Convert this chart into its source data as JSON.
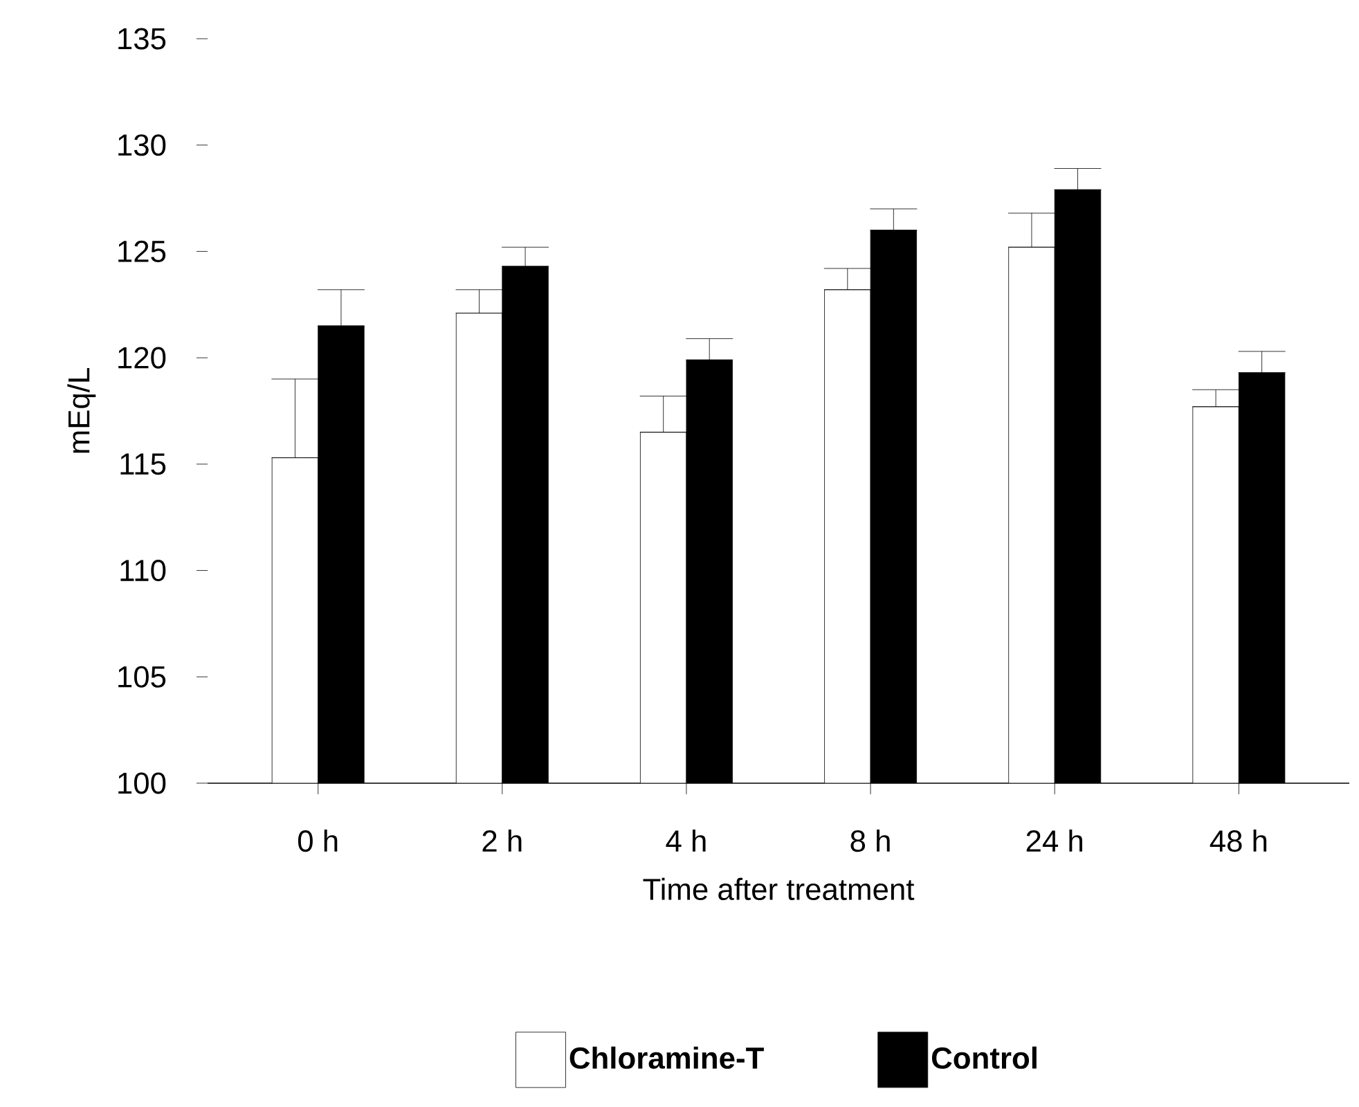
{
  "chart_data": {
    "type": "bar",
    "xlabel": "Time after treatment",
    "ylabel": "mEq/L",
    "categories": [
      "0 h",
      "2 h",
      "4 h",
      "8 h",
      "24 h",
      "48 h"
    ],
    "series": [
      {
        "name": "Chloramine-T",
        "color": "#ffffff",
        "values": [
          115.3,
          122.1,
          116.5,
          123.2,
          125.2,
          117.7
        ],
        "errors": [
          [
            115.3,
            119.0
          ],
          [
            122.1,
            123.2
          ],
          [
            116.5,
            118.2
          ],
          [
            123.2,
            124.2
          ],
          [
            125.2,
            126.8
          ],
          [
            117.7,
            118.5
          ]
        ]
      },
      {
        "name": "Control",
        "color": "#000000",
        "values": [
          121.5,
          124.3,
          119.9,
          126.0,
          127.9,
          119.3
        ],
        "errors": [
          [
            121.5,
            123.2
          ],
          [
            124.3,
            125.2
          ],
          [
            119.9,
            120.9
          ],
          [
            126.0,
            127.0
          ],
          [
            127.9,
            128.9
          ],
          [
            119.3,
            120.3
          ]
        ]
      }
    ],
    "ylim": [
      100,
      135
    ],
    "yticks": [
      100,
      105,
      110,
      115,
      120,
      125,
      130,
      135
    ],
    "grid": false,
    "legend": "bottom"
  }
}
